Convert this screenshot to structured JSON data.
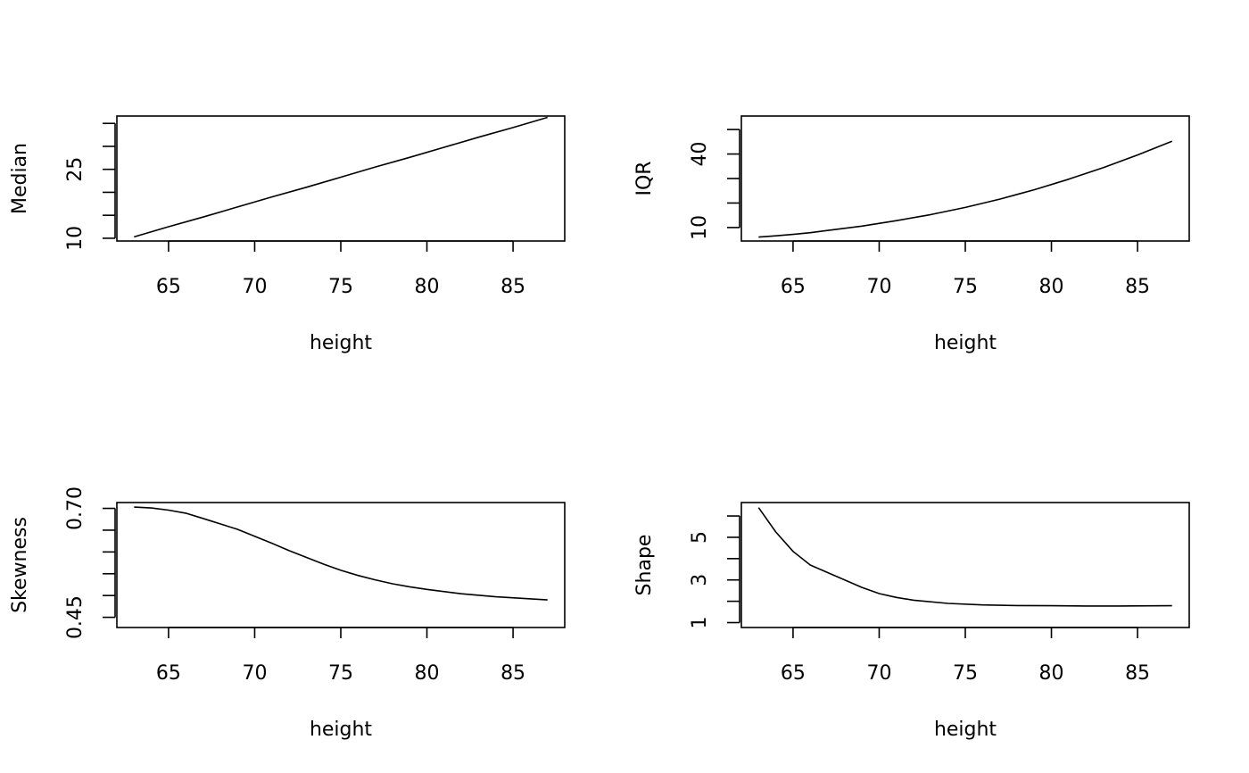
{
  "chart_data": [
    {
      "type": "line",
      "xlabel": "height",
      "ylabel": "Median",
      "xlim": [
        62,
        88
      ],
      "ylim": [
        9.4,
        36.6
      ],
      "x_ticks": [
        65,
        70,
        75,
        80,
        85
      ],
      "x_tick_labels": [
        "65",
        "70",
        "75",
        "80",
        "85"
      ],
      "y_ticks": [
        10,
        15,
        20,
        25,
        30,
        35
      ],
      "y_tick_labels": [
        "10",
        "",
        "",
        "25",
        "",
        ""
      ],
      "x": [
        63,
        65,
        67,
        69,
        71,
        73,
        75,
        77,
        79,
        81,
        83,
        85,
        87
      ],
      "series": [
        {
          "values": [
            10.3,
            12.5,
            14.6,
            16.8,
            19.0,
            21.1,
            23.3,
            25.5,
            27.6,
            29.8,
            32.0,
            34.1,
            36.3
          ]
        }
      ]
    },
    {
      "type": "line",
      "xlabel": "height",
      "ylabel": "IQR",
      "xlim": [
        62,
        88
      ],
      "ylim": [
        4.5,
        55.5
      ],
      "x_ticks": [
        65,
        70,
        75,
        80,
        85
      ],
      "x_tick_labels": [
        "65",
        "70",
        "75",
        "80",
        "85"
      ],
      "y_ticks": [
        10,
        20,
        30,
        40,
        50
      ],
      "y_tick_labels": [
        "10",
        "",
        "",
        "40",
        ""
      ],
      "x": [
        63,
        64,
        65,
        66,
        67,
        69,
        71,
        73,
        75,
        77,
        79,
        81,
        83,
        85,
        87
      ],
      "series": [
        {
          "values": [
            6.1,
            6.6,
            7.2,
            7.9,
            8.8,
            10.6,
            12.8,
            15.3,
            18.2,
            21.6,
            25.4,
            29.7,
            34.4,
            39.6,
            45.2
          ]
        }
      ]
    },
    {
      "type": "line",
      "xlabel": "height",
      "ylabel": "Skewness",
      "xlim": [
        62,
        88
      ],
      "ylim": [
        0.4266,
        0.7134
      ],
      "x_ticks": [
        65,
        70,
        75,
        80,
        85
      ],
      "x_tick_labels": [
        "65",
        "70",
        "75",
        "80",
        "85"
      ],
      "y_ticks": [
        0.45,
        0.5,
        0.55,
        0.6,
        0.65,
        0.7
      ],
      "y_tick_labels": [
        "0.45",
        "",
        "",
        "",
        "",
        "0.70"
      ],
      "x": [
        63,
        64,
        65,
        66,
        67,
        69,
        71,
        72,
        74,
        75,
        76,
        77,
        78,
        79,
        80,
        82,
        84,
        87
      ],
      "series": [
        {
          "values": [
            0.703,
            0.701,
            0.696,
            0.689,
            0.677,
            0.652,
            0.62,
            0.603,
            0.572,
            0.558,
            0.546,
            0.536,
            0.527,
            0.52,
            0.514,
            0.504,
            0.497,
            0.49
          ]
        }
      ]
    },
    {
      "type": "line",
      "xlabel": "height",
      "ylabel": "Shape",
      "xlim": [
        62,
        88
      ],
      "ylim": [
        0.77,
        6.63
      ],
      "x_ticks": [
        65,
        70,
        75,
        80,
        85
      ],
      "x_tick_labels": [
        "65",
        "70",
        "75",
        "80",
        "85"
      ],
      "y_ticks": [
        1,
        2,
        3,
        4,
        5,
        6
      ],
      "y_tick_labels": [
        "1",
        "",
        "3",
        "",
        "5",
        ""
      ],
      "x": [
        63,
        64,
        65,
        66,
        67,
        69,
        70,
        71,
        72,
        74,
        76,
        78,
        80,
        82,
        84,
        87
      ],
      "series": [
        {
          "values": [
            6.39,
            5.25,
            4.34,
            3.7,
            3.35,
            2.65,
            2.36,
            2.18,
            2.05,
            1.9,
            1.83,
            1.8,
            1.79,
            1.78,
            1.78,
            1.79
          ]
        }
      ]
    }
  ]
}
